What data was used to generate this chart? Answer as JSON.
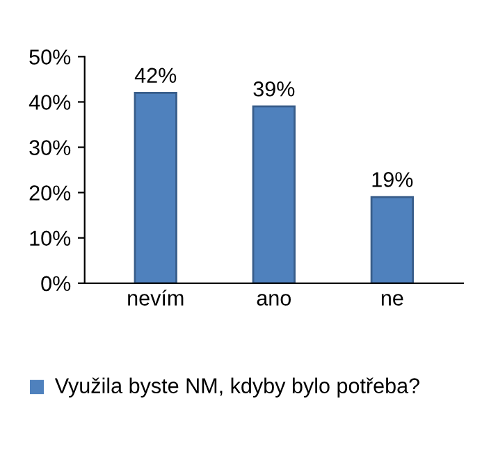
{
  "chart_data": {
    "type": "bar",
    "categories": [
      "nevím",
      "ano",
      "ne"
    ],
    "series": [
      {
        "name": "Využila byste NM, kdyby bylo potřeba?",
        "color": "#4f81bd",
        "values": [
          42,
          39,
          19
        ],
        "value_labels": [
          "42%",
          "39%",
          "19%"
        ]
      }
    ],
    "ylim": [
      0,
      50
    ],
    "yticks": [
      {
        "value": 0,
        "label": "0%"
      },
      {
        "value": 10,
        "label": "10%"
      },
      {
        "value": 20,
        "label": "20%"
      },
      {
        "value": 30,
        "label": "30%"
      },
      {
        "value": 40,
        "label": "40%"
      },
      {
        "value": 50,
        "label": "50%"
      }
    ],
    "grid": false,
    "legend": "bottom"
  }
}
